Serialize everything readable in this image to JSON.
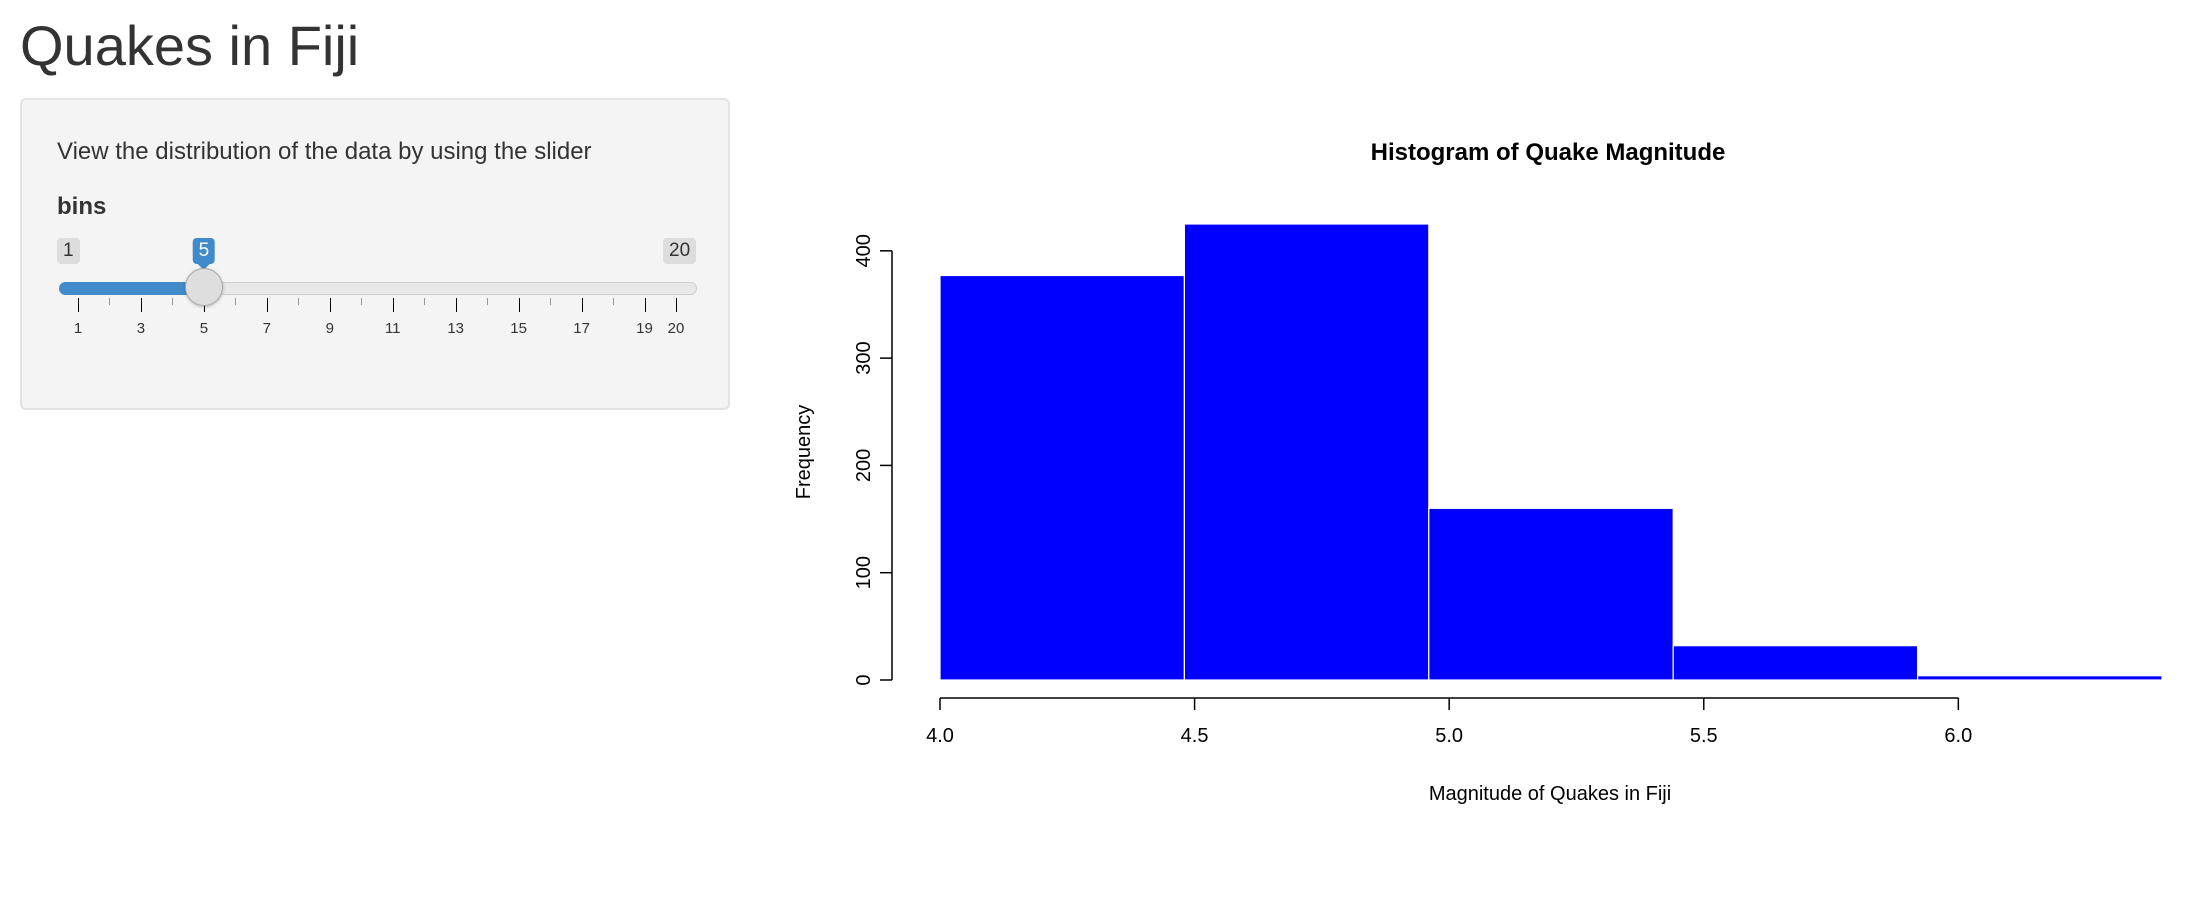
{
  "page": {
    "title": "Quakes in Fiji"
  },
  "sidebar": {
    "help_text": "View the distribution of the data by using the slider",
    "slider": {
      "label": "bins",
      "min": 1,
      "max": 20,
      "value": 5,
      "min_label": "1",
      "max_label": "20",
      "value_label": "5",
      "tick_labels": [
        "1",
        "3",
        "5",
        "7",
        "9",
        "11",
        "13",
        "15",
        "17",
        "19",
        "20"
      ],
      "accent_color": "#428bca"
    }
  },
  "chart_data": {
    "type": "bar",
    "title": "Histogram of Quake Magnitude",
    "xlabel": "Magnitude of Quakes in Fiji",
    "ylabel": "Frequency",
    "bins": [
      {
        "start": 4.0,
        "end": 4.48,
        "count": 377
      },
      {
        "start": 4.48,
        "end": 4.96,
        "count": 425
      },
      {
        "start": 4.96,
        "end": 5.44,
        "count": 160
      },
      {
        "start": 5.44,
        "end": 5.92,
        "count": 32
      },
      {
        "start": 5.92,
        "end": 6.4,
        "count": 4
      }
    ],
    "xticks": [
      "4.0",
      "4.5",
      "5.0",
      "5.5",
      "6.0"
    ],
    "yticks": [
      "0",
      "100",
      "200",
      "300",
      "400"
    ],
    "xlim": [
      4.0,
      6.4
    ],
    "ylim": [
      0,
      425
    ],
    "bar_color": "#0000ff",
    "grid": false,
    "legend": "none"
  }
}
